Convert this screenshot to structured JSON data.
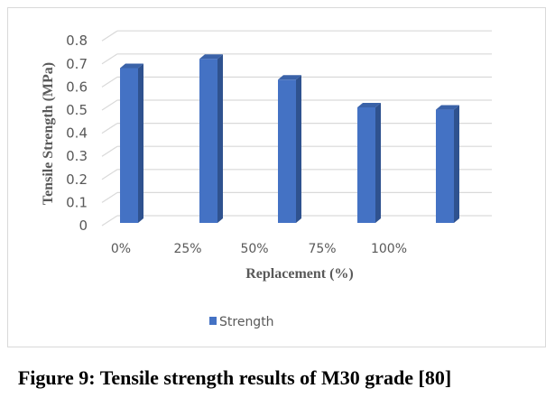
{
  "chart_data": {
    "type": "bar",
    "title": "",
    "categories": [
      "0%",
      "25%",
      "50%",
      "75%",
      "100%"
    ],
    "series": [
      {
        "name": "Strength",
        "values": [
          0.67,
          0.71,
          0.62,
          0.5,
          0.49
        ]
      }
    ],
    "xlabel": "Replacement (%)",
    "ylabel": "Tensile Strength (MPa)",
    "ylim": [
      0,
      0.8
    ],
    "yticks": [
      "0",
      "0.1",
      "0.2",
      "0.3",
      "0.4",
      "0.5",
      "0.6",
      "0.7",
      "0.8"
    ],
    "grid": true,
    "legend": "bottom",
    "colors": {
      "front": "#4472c4",
      "side": "#2f528f",
      "top": "#3a62a8",
      "grid": "#d9d9d9",
      "text": "#595959"
    }
  },
  "caption": "Figure 9: Tensile strength results of M30 grade [80]"
}
